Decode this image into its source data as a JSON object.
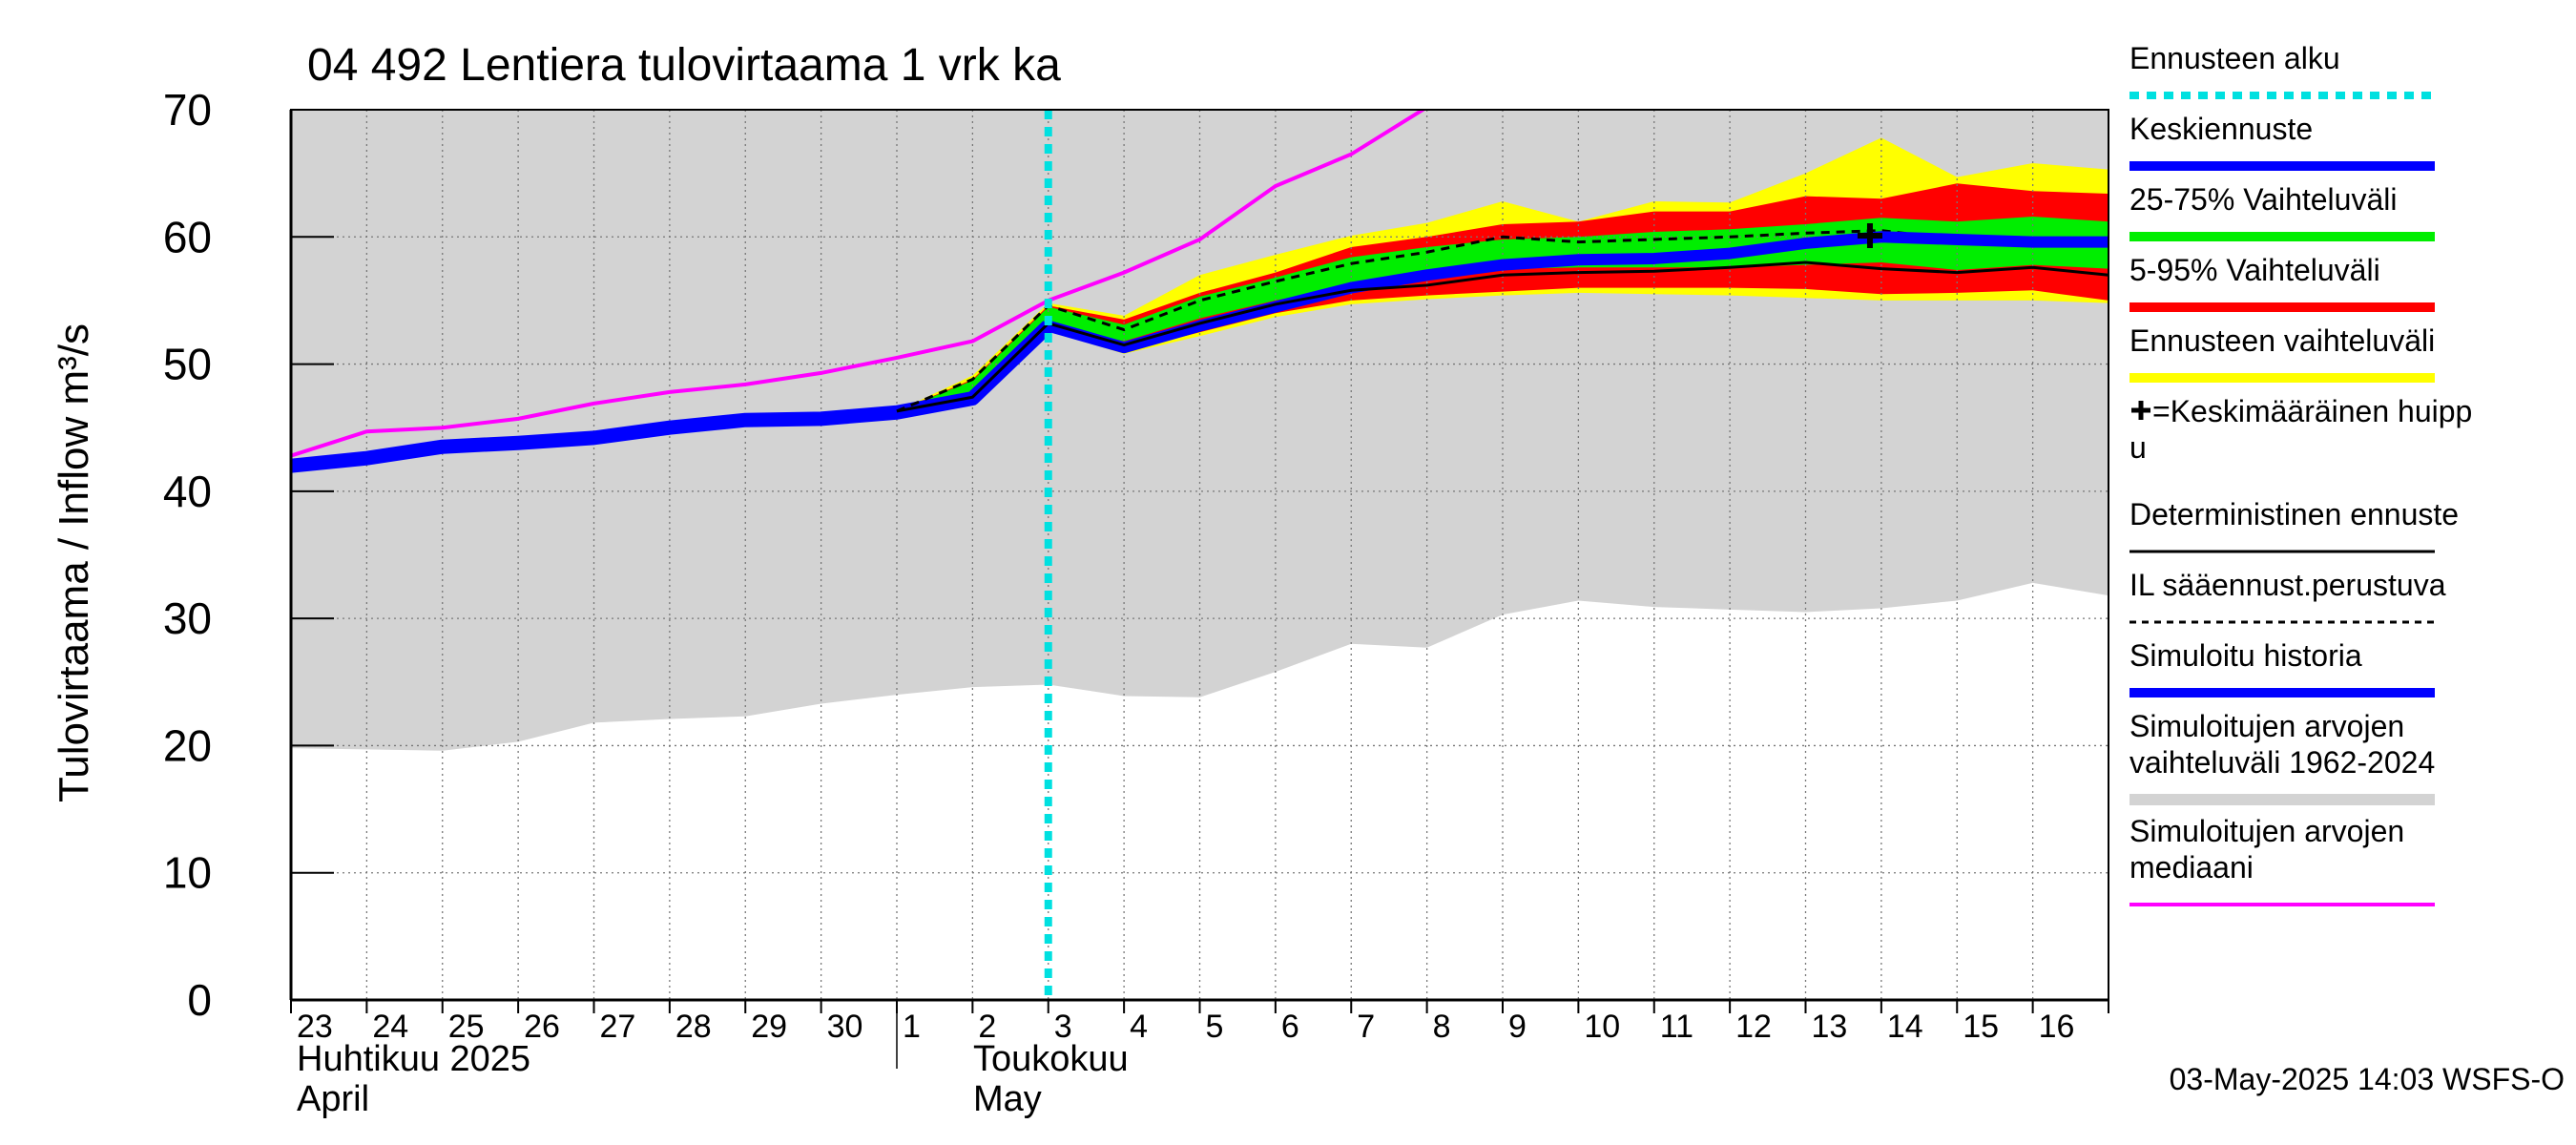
{
  "chart_data": {
    "type": "area",
    "title": "04 492 Lentiera tulovirtaama 1 vrk ka",
    "ylabel": "Tulovirtaama / Inflow    m³/s",
    "ylim": [
      0,
      70
    ],
    "yticks": [
      0,
      10,
      20,
      30,
      40,
      50,
      60,
      70
    ],
    "grid": true,
    "x_days": [
      "23",
      "24",
      "25",
      "26",
      "27",
      "28",
      "29",
      "30",
      "1",
      "2",
      "3",
      "4",
      "5",
      "6",
      "7",
      "8",
      "9",
      "10",
      "11",
      "12",
      "13",
      "14",
      "15",
      "16"
    ],
    "x_month_1": [
      "Huhtikuu  2025",
      "April"
    ],
    "x_month_2": [
      "Toukokuu",
      "May"
    ],
    "x_range": [
      0,
      24
    ],
    "forecast_start_x": 10.0,
    "footer": "03-May-2025 14:03 WSFS-O",
    "colors": {
      "forecast_start": "#00e0e0",
      "mean_forecast": "#0000ff",
      "range_25_75": "#00ee00",
      "range_5_95": "#ff0000",
      "range_forecast": "#ffff00",
      "deterministic": "#000000",
      "il_based": "#000000",
      "simulated_history": "#0000ff",
      "simulated_range": "#d3d3d3",
      "simulated_median": "#ff00ff"
    },
    "series": [
      {
        "key": "sim_range",
        "name": "Simuloitujen arvojen vaihteluväli 1962-2024",
        "x": [
          0,
          1,
          2,
          3,
          4,
          5,
          6,
          7,
          8,
          9,
          10,
          11,
          12,
          13,
          14,
          15,
          16,
          17,
          18,
          19,
          20,
          21,
          22,
          23,
          24
        ],
        "low": [
          19.8,
          19.7,
          19.6,
          20.3,
          21.8,
          22.1,
          22.3,
          23.3,
          24.0,
          24.6,
          24.8,
          23.9,
          23.8,
          25.8,
          28.0,
          27.7,
          30.3,
          31.4,
          30.9,
          30.7,
          30.5,
          30.8,
          31.4,
          32.8,
          31.8
        ],
        "high": [
          70,
          70,
          70,
          70,
          70,
          70,
          70,
          70,
          70,
          70,
          70,
          70,
          70,
          70,
          70,
          70,
          70,
          70,
          70,
          70,
          70,
          70,
          70,
          70,
          70
        ]
      },
      {
        "key": "range_forecast",
        "name": "Ennusteen vaihteluväli",
        "x": [
          8,
          9,
          10,
          11,
          12,
          13,
          14,
          15,
          16,
          17,
          18,
          19,
          20,
          21,
          22,
          23,
          24
        ],
        "low": [
          46.3,
          46.9,
          52.6,
          50.8,
          52.2,
          53.7,
          54.7,
          55.1,
          55.4,
          55.6,
          55.5,
          55.4,
          55.2,
          55.0,
          55.0,
          55.0,
          54.8
        ],
        "high": [
          46.3,
          49.1,
          54.8,
          53.8,
          57.0,
          58.6,
          60.1,
          61.1,
          62.8,
          61.2,
          62.8,
          62.7,
          65.0,
          67.8,
          64.7,
          65.8,
          65.3
        ]
      },
      {
        "key": "range_5_95",
        "name": "5-95% Vaihteluväli",
        "x": [
          8,
          9,
          10,
          11,
          12,
          13,
          14,
          15,
          16,
          17,
          18,
          19,
          20,
          21,
          22,
          23,
          24
        ],
        "low": [
          46.3,
          47.0,
          52.7,
          51.0,
          52.5,
          54.0,
          55.0,
          55.4,
          55.7,
          56.0,
          56.0,
          56.0,
          55.9,
          55.5,
          55.6,
          55.8,
          55.0
        ],
        "high": [
          46.3,
          48.8,
          54.6,
          53.5,
          55.6,
          57.2,
          59.2,
          60.0,
          61.0,
          61.2,
          62.0,
          62.0,
          63.2,
          63.0,
          64.2,
          63.6,
          63.4
        ]
      },
      {
        "key": "range_25_75",
        "name": "25-75% Vaihteluväli",
        "x": [
          8,
          9,
          10,
          11,
          12,
          13,
          14,
          15,
          16,
          17,
          18,
          19,
          20,
          21,
          22,
          23,
          24
        ],
        "low": [
          46.3,
          47.3,
          53.1,
          51.8,
          53.6,
          55.0,
          56.2,
          57.0,
          57.5,
          57.6,
          57.6,
          57.6,
          57.8,
          58.0,
          57.4,
          57.8,
          57.5
        ],
        "high": [
          46.3,
          48.7,
          54.5,
          53.1,
          55.3,
          56.8,
          58.4,
          59.2,
          59.8,
          60.0,
          60.4,
          60.6,
          61.0,
          61.5,
          61.2,
          61.6,
          61.2
        ]
      },
      {
        "key": "deterministic",
        "name": "Deterministinen ennuste",
        "x": [
          8,
          9,
          10,
          11,
          12,
          13,
          14,
          15,
          16,
          17,
          18,
          19,
          20,
          21,
          22,
          23,
          24
        ],
        "y": [
          46.3,
          47.4,
          53.2,
          51.5,
          53.2,
          54.7,
          55.8,
          56.2,
          57.0,
          57.2,
          57.3,
          57.6,
          58.0,
          57.5,
          57.2,
          57.6,
          57.0
        ]
      },
      {
        "key": "il_based",
        "name": "IL sääennust.perustuva",
        "x": [
          8,
          9,
          10,
          11,
          12,
          13,
          14,
          15,
          16,
          17,
          18,
          19,
          20,
          21,
          22,
          23,
          24
        ],
        "y": [
          46.3,
          48.8,
          54.6,
          52.7,
          55.0,
          56.5,
          57.9,
          58.8,
          60.0,
          59.6,
          59.8,
          60.0,
          60.3,
          60.5,
          59.8,
          59.8,
          59.5
        ]
      },
      {
        "key": "mean_forecast",
        "name": "Keskiennuste",
        "x": [
          9,
          10,
          11,
          12,
          13,
          14,
          15,
          16,
          17,
          18,
          19,
          20,
          21,
          22,
          23,
          24
        ],
        "y": [
          47.3,
          53.0,
          51.3,
          53.0,
          54.5,
          56.0,
          57.0,
          57.8,
          58.2,
          58.3,
          58.7,
          59.5,
          60.0,
          59.8,
          59.6,
          59.6
        ]
      },
      {
        "key": "sim_history",
        "name": "Simuloitu historia",
        "x": [
          0,
          1,
          2,
          3,
          4,
          5,
          6,
          7,
          8,
          9,
          10
        ],
        "y": [
          42.0,
          42.6,
          43.5,
          43.8,
          44.2,
          45.0,
          45.6,
          45.7,
          46.2,
          47.3,
          53.0
        ]
      },
      {
        "key": "sim_median",
        "name": "Simuloitujen arvojen mediaani",
        "x": [
          0,
          1,
          2,
          3,
          4,
          5,
          6,
          7,
          8,
          9,
          10,
          11,
          12,
          13,
          14,
          15
        ],
        "y": [
          42.8,
          44.7,
          45.0,
          45.7,
          46.9,
          47.8,
          48.4,
          49.3,
          50.5,
          51.8,
          55.0,
          57.2,
          59.8,
          64.0,
          66.5,
          70.2
        ]
      }
    ],
    "peak_marker": {
      "name": "=Keskimääräinen huippu",
      "x": 20.85,
      "y": 60.1
    },
    "legend": [
      {
        "key": "forecast_start",
        "label": "Ennusteen alku",
        "style": "dotted-cyan"
      },
      {
        "key": "mean_forecast",
        "label": "Keskiennuste",
        "style": "thick-blue"
      },
      {
        "key": "range_25_75",
        "label": "25-75% Vaihteluväli",
        "style": "thick-green"
      },
      {
        "key": "range_5_95",
        "label": "5-95% Vaihteluväli",
        "style": "thick-red"
      },
      {
        "key": "range_forecast",
        "label": "Ennusteen vaihteluväli",
        "style": "thick-yellow"
      },
      {
        "key": "peak_marker",
        "label": "=Keskimääräinen huipp",
        "label2": "u",
        "style": "cross"
      },
      {
        "key": "deterministic",
        "label": "Deterministinen ennuste",
        "style": "thin-black"
      },
      {
        "key": "il_based",
        "label": "IL sääennust.perustuva",
        "style": "dashed-black"
      },
      {
        "key": "sim_history",
        "label": "Simuloitu historia",
        "style": "thick-blue"
      },
      {
        "key": "sim_range",
        "label": "Simuloitujen arvojen",
        "label2": "vaihteluväli 1962-2024",
        "style": "thick-gray"
      },
      {
        "key": "sim_median",
        "label": "Simuloitujen arvojen",
        "label2": "mediaani",
        "style": "thin-magenta"
      }
    ]
  }
}
